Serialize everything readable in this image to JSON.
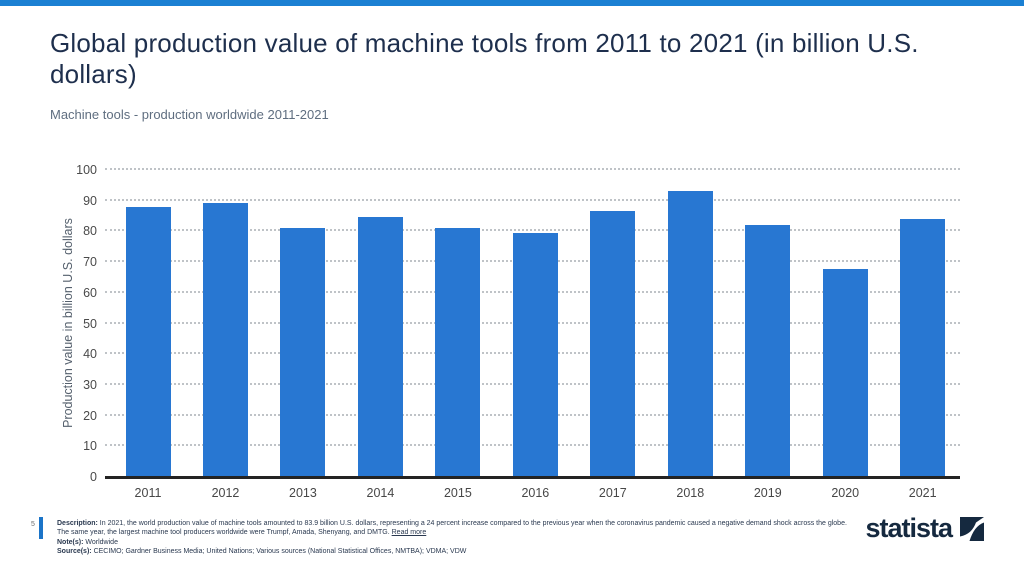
{
  "page": {
    "page_number": "5"
  },
  "header": {
    "title": "Global production value of machine tools from 2011 to 2021 (in billion U.S. dollars)",
    "subtitle": "Machine tools - production worldwide 2011-2021"
  },
  "chart_data": {
    "type": "bar",
    "categories": [
      "2011",
      "2012",
      "2013",
      "2014",
      "2015",
      "2016",
      "2017",
      "2018",
      "2019",
      "2020",
      "2021"
    ],
    "values": [
      88.1,
      89.2,
      81.1,
      84.8,
      81.2,
      79.4,
      86.6,
      93.1,
      82.2,
      67.7,
      83.9
    ],
    "title": "",
    "xlabel": "",
    "ylabel": "Production value in billion U.S. dollars",
    "ylim": [
      0,
      100
    ],
    "ytick_step": 10,
    "grid": "horizontal-dotted",
    "legend_position": "none",
    "bar_color": "#2877d2"
  },
  "footer": {
    "description_label": "Description:",
    "description": "In 2021, the world production value of machine tools amounted to 83.9 billion U.S. dollars, representing a 24 percent increase compared to the previous year when the coronavirus pandemic caused a negative demand shock across the globe. The same year, the largest machine tool producers worldwide were Trumpf, Amada, Shenyang, and DMTG.",
    "read_more": "Read more",
    "notes_label": "Note(s):",
    "notes": "Worldwide",
    "sources_label": "Source(s):",
    "sources": "CECIMO; Gardner Business Media; United Nations; Various sources (National Statistical Offices, NMTBA); VDMA; VDW"
  },
  "branding": {
    "logo_text": "statista"
  },
  "colors": {
    "accent_blue": "#1b80d3",
    "bar_blue": "#2877d2",
    "navy": "#15293f",
    "page_bar_blue": "#1b74c8"
  }
}
